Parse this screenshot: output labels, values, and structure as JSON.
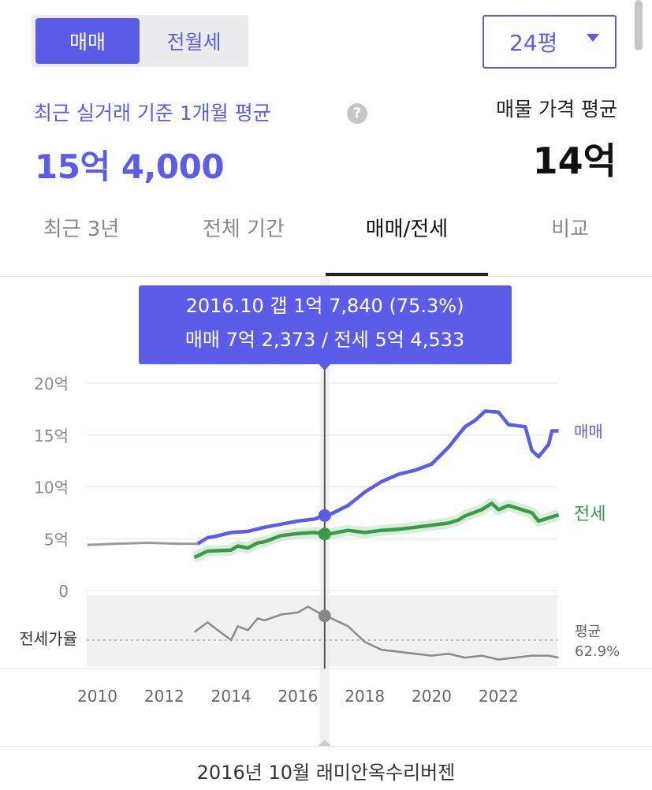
{
  "deal_toggle": {
    "options": [
      "매매",
      "전월세"
    ],
    "selected": "매매"
  },
  "size_select": {
    "value": "24평"
  },
  "summary": {
    "recent_label": "최근 실거래 기준 1개월 평균",
    "recent_price": "15억 4,000",
    "listing_label": "매물 가격 평균",
    "listing_price": "14억",
    "help_icon": "question-circle-icon"
  },
  "tabs": [
    "최근 3년",
    "전체 기간",
    "매매/전세",
    "비교"
  ],
  "active_tab": "매매/전세",
  "tooltip": {
    "line1": "2016.10  갭 1억 7,840 (75.3%)",
    "line2": "매매 7억 2,373 / 전세 5억 4,533"
  },
  "footer_text": "2016년 10월 래미안옥수리버젠",
  "colors": {
    "accent": "#5b5de8",
    "jeonse": "#3b9a4a",
    "ratio": "#8a8a8a",
    "pre_data": "#999999"
  },
  "chart_data": {
    "type": "line",
    "x_tick_labels": [
      "2010",
      "2012",
      "2014",
      "2016",
      "2018",
      "2020",
      "2022"
    ],
    "y_tick_labels": [
      "20억",
      "15억",
      "10억",
      "5억",
      "0"
    ],
    "ylim": [
      0,
      20
    ],
    "xlim": [
      2009.6,
      2024.1
    ],
    "unit": "억",
    "series": [
      {
        "name": "매매",
        "points": [
          [
            2009.7,
            4.4
          ],
          [
            2010.5,
            4.5
          ],
          [
            2011.5,
            4.6
          ],
          [
            2012.5,
            4.5
          ],
          [
            2012.9,
            4.5
          ],
          [
            2013.0,
            4.5
          ],
          [
            2013.3,
            5.1
          ],
          [
            2013.5,
            5.2
          ],
          [
            2014.0,
            5.6
          ],
          [
            2014.5,
            5.7
          ],
          [
            2015.0,
            6.1
          ],
          [
            2015.5,
            6.4
          ],
          [
            2016.0,
            6.7
          ],
          [
            2016.5,
            6.9
          ],
          [
            2016.8,
            7.24
          ],
          [
            2017.0,
            7.4
          ],
          [
            2017.5,
            8.2
          ],
          [
            2018.0,
            9.5
          ],
          [
            2018.5,
            10.5
          ],
          [
            2019.0,
            11.2
          ],
          [
            2019.5,
            11.6
          ],
          [
            2020.0,
            12.2
          ],
          [
            2020.5,
            13.8
          ],
          [
            2021.0,
            15.8
          ],
          [
            2021.3,
            16.4
          ],
          [
            2021.6,
            17.3
          ],
          [
            2022.0,
            17.2
          ],
          [
            2022.3,
            16.0
          ],
          [
            2022.8,
            15.8
          ],
          [
            2023.0,
            13.5
          ],
          [
            2023.2,
            12.9
          ],
          [
            2023.5,
            14.1
          ],
          [
            2023.6,
            15.4
          ],
          [
            2023.8,
            15.4
          ]
        ]
      },
      {
        "name": "전세",
        "points": [
          [
            2012.9,
            3.2
          ],
          [
            2013.3,
            3.8
          ],
          [
            2014.0,
            3.9
          ],
          [
            2014.2,
            4.3
          ],
          [
            2014.5,
            4.1
          ],
          [
            2014.8,
            4.6
          ],
          [
            2015.0,
            4.7
          ],
          [
            2015.5,
            5.3
          ],
          [
            2016.0,
            5.5
          ],
          [
            2016.5,
            5.6
          ],
          [
            2016.8,
            5.45
          ],
          [
            2017.0,
            5.5
          ],
          [
            2017.5,
            5.8
          ],
          [
            2018.0,
            5.6
          ],
          [
            2018.5,
            5.8
          ],
          [
            2019.0,
            5.9
          ],
          [
            2019.5,
            6.1
          ],
          [
            2020.0,
            6.3
          ],
          [
            2020.5,
            6.5
          ],
          [
            2020.8,
            6.8
          ],
          [
            2021.0,
            7.2
          ],
          [
            2021.5,
            7.8
          ],
          [
            2021.8,
            8.4
          ],
          [
            2022.0,
            7.8
          ],
          [
            2022.3,
            8.2
          ],
          [
            2022.6,
            7.9
          ],
          [
            2023.0,
            7.5
          ],
          [
            2023.2,
            6.7
          ],
          [
            2023.5,
            7.0
          ],
          [
            2023.8,
            7.3
          ]
        ]
      }
    ],
    "ratio": {
      "label": "전세가율",
      "average_label": "평균",
      "average_value": "62.9%",
      "average": 62.9,
      "ylim": [
        50,
        85
      ],
      "points": [
        [
          2012.9,
          67
        ],
        [
          2013.3,
          72
        ],
        [
          2013.6,
          68
        ],
        [
          2014.0,
          63
        ],
        [
          2014.2,
          70
        ],
        [
          2014.5,
          68
        ],
        [
          2014.8,
          74
        ],
        [
          2015.0,
          73
        ],
        [
          2015.5,
          76
        ],
        [
          2016.0,
          77
        ],
        [
          2016.3,
          80
        ],
        [
          2016.5,
          78
        ],
        [
          2016.8,
          75.3
        ],
        [
          2017.0,
          74
        ],
        [
          2017.5,
          70
        ],
        [
          2018.0,
          62
        ],
        [
          2018.5,
          58
        ],
        [
          2019.0,
          57
        ],
        [
          2019.5,
          56
        ],
        [
          2020.0,
          55
        ],
        [
          2020.5,
          56
        ],
        [
          2021.0,
          54
        ],
        [
          2021.5,
          55
        ],
        [
          2022.0,
          53
        ],
        [
          2022.5,
          54
        ],
        [
          2023.0,
          55
        ],
        [
          2023.5,
          55
        ],
        [
          2023.8,
          54
        ]
      ]
    },
    "side_labels": {
      "sale": "매매",
      "jeonse": "전세"
    },
    "selected": {
      "x": 2016.8,
      "sale": 7.2373,
      "jeonse": 5.4533,
      "ratio": 75.3
    }
  }
}
